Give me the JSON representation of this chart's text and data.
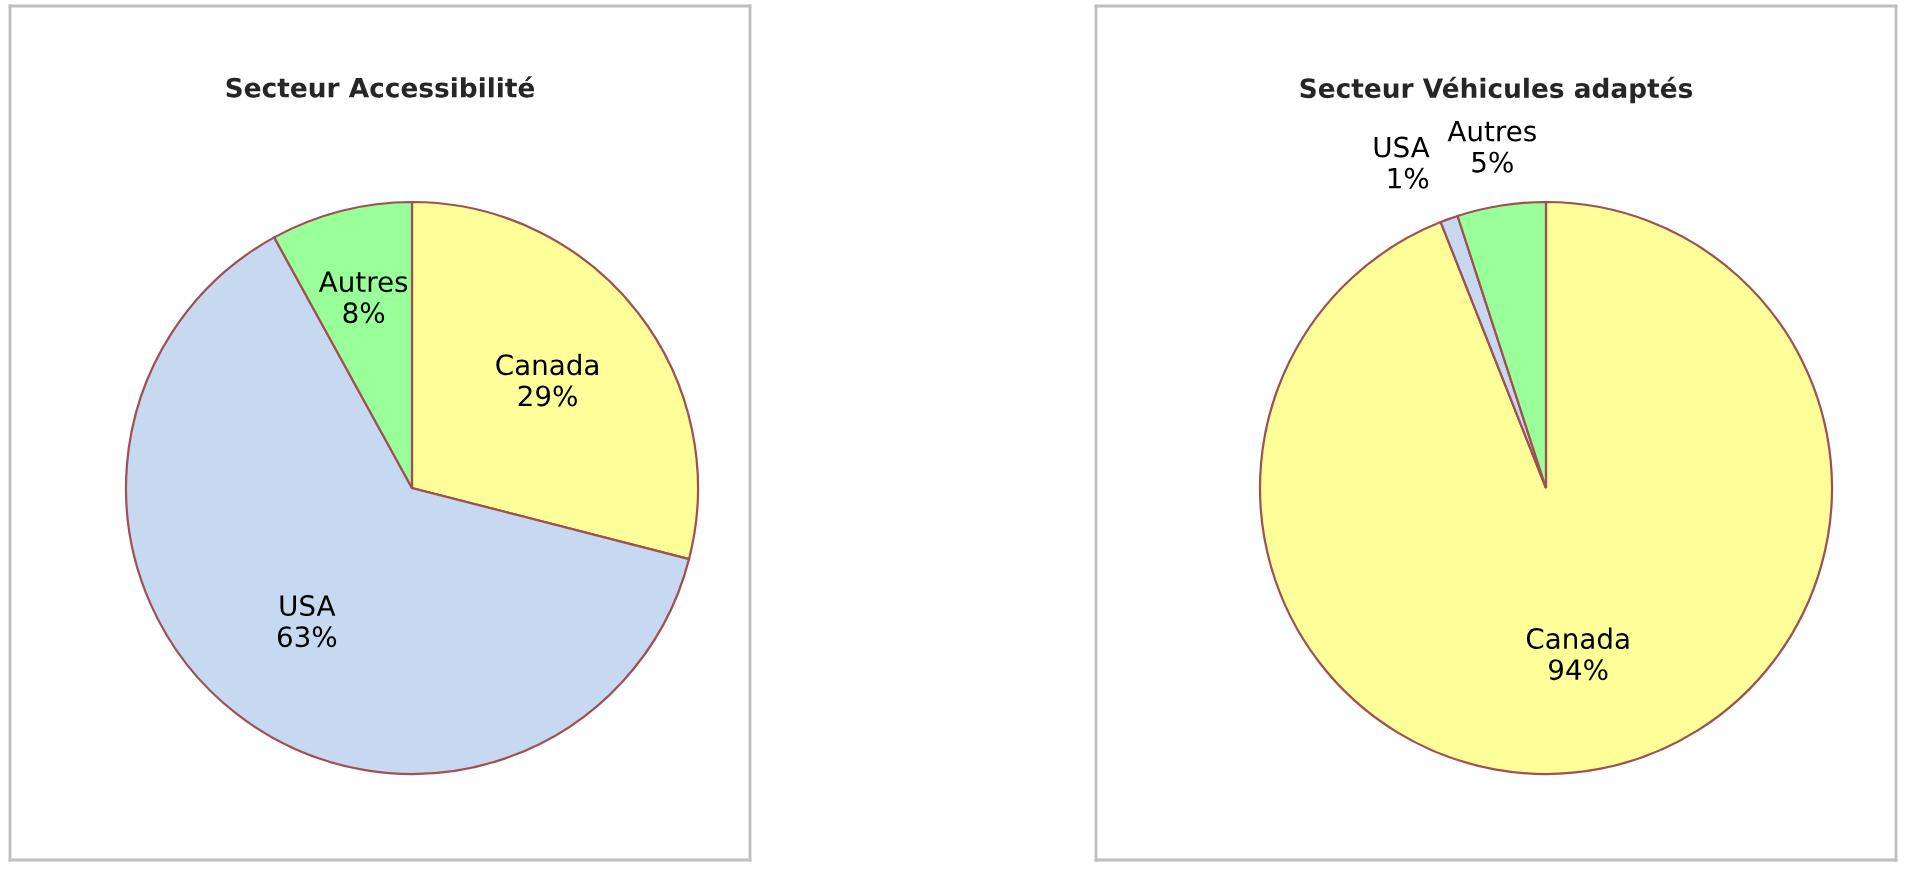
{
  "chart_data": [
    {
      "type": "pie",
      "title": "Secteur Accessibilité",
      "categories": [
        "Canada",
        "USA",
        "Autres"
      ],
      "values": [
        29,
        63,
        8
      ],
      "value_labels": [
        "29%",
        "63%",
        "8%"
      ],
      "colors": [
        "#ffff99",
        "#c6d9f1",
        "#99ff99"
      ]
    },
    {
      "type": "pie",
      "title": "Secteur Véhicules adaptés",
      "categories": [
        "Canada",
        "USA",
        "Autres"
      ],
      "values": [
        94,
        1,
        5
      ],
      "value_labels": [
        "94%",
        "1%",
        "5%"
      ],
      "colors": [
        "#ffff99",
        "#c6d9f1",
        "#99ff99"
      ]
    }
  ]
}
